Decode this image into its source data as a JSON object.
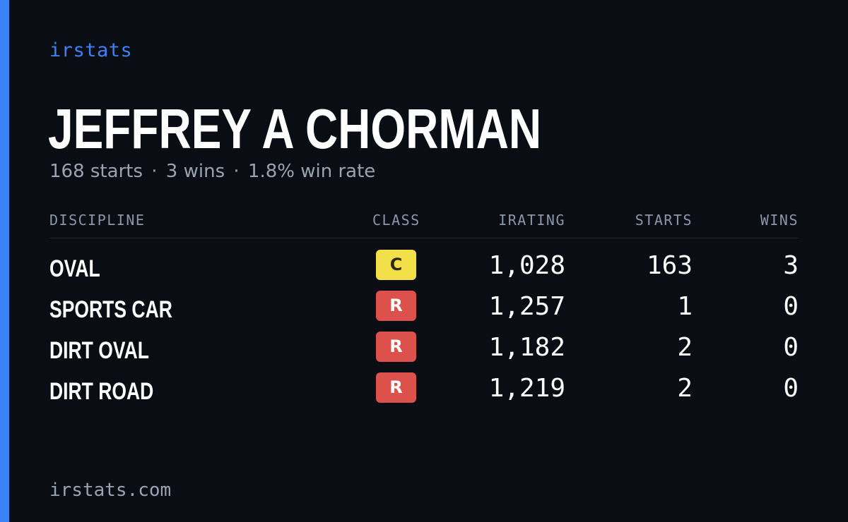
{
  "brand": "irstats",
  "driver": {
    "name": "JEFFREY A CHORMAN",
    "summary": {
      "starts": "168 starts",
      "wins": "3 wins",
      "win_rate": "1.8% win rate",
      "separator": "·"
    }
  },
  "table": {
    "headers": {
      "discipline": "DISCIPLINE",
      "class": "CLASS",
      "irating": "IRATING",
      "starts": "STARTS",
      "wins": "WINS"
    },
    "rows": [
      {
        "discipline": "OVAL",
        "class": "C",
        "class_color": "#f2df4a",
        "irating": "1,028",
        "starts": "163",
        "wins": "3"
      },
      {
        "discipline": "SPORTS CAR",
        "class": "R",
        "class_color": "#dc514b",
        "irating": "1,257",
        "starts": "1",
        "wins": "0"
      },
      {
        "discipline": "DIRT OVAL",
        "class": "R",
        "class_color": "#dc514b",
        "irating": "1,182",
        "starts": "2",
        "wins": "0"
      },
      {
        "discipline": "DIRT ROAD",
        "class": "R",
        "class_color": "#dc514b",
        "irating": "1,219",
        "starts": "2",
        "wins": "0"
      }
    ]
  },
  "footer": {
    "url": "irstats.com"
  },
  "colors": {
    "background": "#0b0d14",
    "accent": "#3b82f6",
    "muted_text": "#9aa3b2"
  }
}
